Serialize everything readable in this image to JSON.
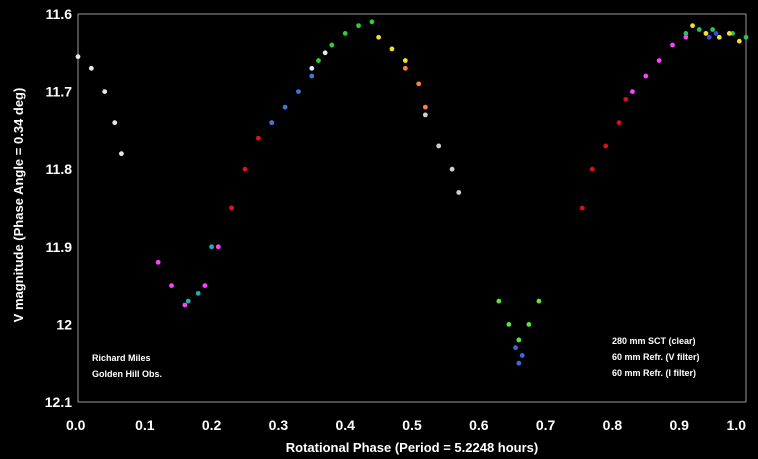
{
  "chart_data": {
    "type": "scatter",
    "title": "",
    "xlabel": "Rotational Phase  (Period = 5.2248 hours)",
    "ylabel": "V magnitude (Phase Angle = 0.34 deg)",
    "xlim": [
      0.0,
      1.0
    ],
    "ylim": [
      12.1,
      11.6
    ],
    "y_inverted": true,
    "grid": false,
    "x_ticks": [
      "0.0",
      "0.1",
      "0.2",
      "0.3",
      "0.4",
      "0.5",
      "0.6",
      "0.7",
      "0.8",
      "0.9",
      "1.0"
    ],
    "y_ticks": [
      "11.6",
      "11.7",
      "11.8",
      "11.9",
      "12",
      "12.1"
    ],
    "annotations": {
      "observer": [
        "Richard Miles",
        "Golden Hill Obs."
      ],
      "instruments": [
        "280 mm SCT (clear)",
        "60 mm Refr. (V filter)",
        "60 mm Refr. (I filter)"
      ]
    },
    "colors": {
      "background": "#000000",
      "plot_area": "#000000",
      "text": "#ffffff"
    },
    "series": [
      {
        "color": "#e8e8e8",
        "x": [
          0.0,
          0.02,
          0.04,
          0.055,
          0.065
        ],
        "y": [
          11.655,
          11.67,
          11.7,
          11.74,
          11.78
        ]
      },
      {
        "color": "#ff40ff",
        "x": [
          0.12,
          0.14,
          0.16,
          0.19,
          0.21,
          0.23
        ],
        "y": [
          11.92,
          11.95,
          11.975,
          11.95,
          11.9,
          11.85
        ]
      },
      {
        "color": "#20b0b0",
        "x": [
          0.165,
          0.18,
          0.2
        ],
        "y": [
          11.97,
          11.96,
          11.9
        ]
      },
      {
        "color": "#e01020",
        "x": [
          0.23,
          0.25,
          0.27,
          0.29
        ],
        "y": [
          11.85,
          11.8,
          11.76,
          11.74
        ]
      },
      {
        "color": "#3a7ad8",
        "x": [
          0.29,
          0.31,
          0.33,
          0.35
        ],
        "y": [
          11.74,
          11.72,
          11.7,
          11.68
        ]
      },
      {
        "color": "#e8e8e8",
        "x": [
          0.35,
          0.37
        ],
        "y": [
          11.67,
          11.65
        ]
      },
      {
        "color": "#30d030",
        "x": [
          0.36,
          0.38,
          0.4,
          0.42,
          0.44
        ],
        "y": [
          11.66,
          11.64,
          11.625,
          11.615,
          11.61
        ]
      },
      {
        "color": "#f0e030",
        "x": [
          0.45,
          0.47,
          0.49
        ],
        "y": [
          11.63,
          11.645,
          11.66
        ]
      },
      {
        "color": "#ff8040",
        "x": [
          0.49,
          0.51,
          0.52
        ],
        "y": [
          11.67,
          11.69,
          11.72
        ]
      },
      {
        "color": "#d0d0d0",
        "x": [
          0.52,
          0.54,
          0.56,
          0.57
        ],
        "y": [
          11.73,
          11.77,
          11.8,
          11.83
        ]
      },
      {
        "color": "#60e040",
        "x": [
          0.63,
          0.645,
          0.66,
          0.675,
          0.69
        ],
        "y": [
          11.97,
          12.0,
          12.02,
          12.0,
          11.97
        ]
      },
      {
        "color": "#3a6ae0",
        "x": [
          0.655,
          0.66,
          0.665
        ],
        "y": [
          12.03,
          12.05,
          12.04
        ]
      },
      {
        "color": "#e01010",
        "x": [
          0.755,
          0.77,
          0.79,
          0.81,
          0.82
        ],
        "y": [
          11.85,
          11.8,
          11.77,
          11.74,
          11.71
        ]
      },
      {
        "color": "#ff40ff",
        "x": [
          0.83,
          0.85,
          0.87,
          0.89,
          0.91
        ],
        "y": [
          11.7,
          11.68,
          11.66,
          11.64,
          11.63
        ]
      },
      {
        "color": "#30c060",
        "x": [
          0.91,
          0.93,
          0.95,
          0.98,
          1.0
        ],
        "y": [
          11.625,
          11.62,
          11.62,
          11.625,
          11.63
        ]
      },
      {
        "color": "#f0e030",
        "x": [
          0.92,
          0.94,
          0.96,
          0.975,
          0.99
        ],
        "y": [
          11.615,
          11.625,
          11.63,
          11.625,
          11.635
        ]
      },
      {
        "color": "#3050e0",
        "x": [
          0.945,
          0.955
        ],
        "y": [
          11.63,
          11.625
        ]
      }
    ]
  }
}
